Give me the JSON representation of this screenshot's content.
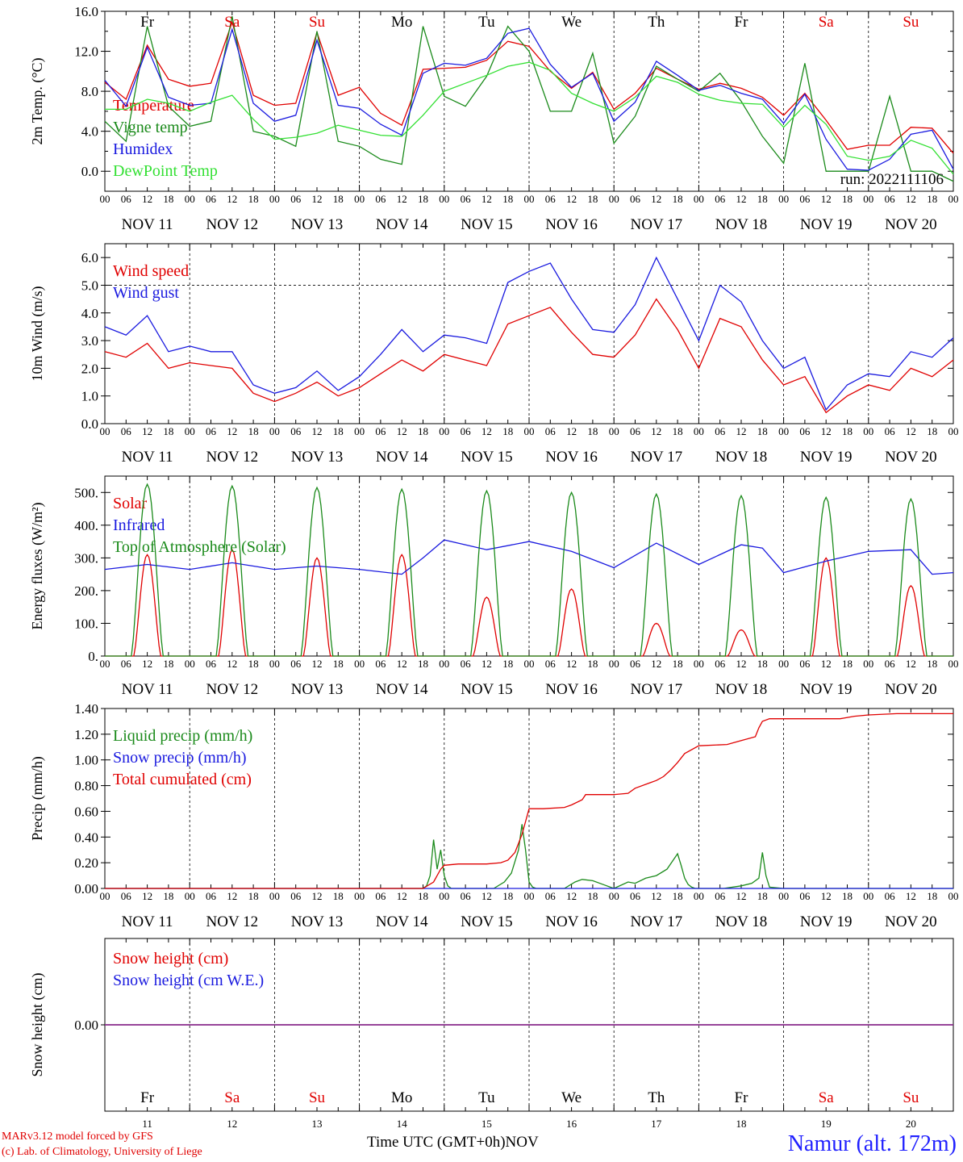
{
  "colors": {
    "red": "#e00000",
    "darkgreen": "#1a8a1a",
    "lightgreen": "#33e033",
    "blue": "#1a1adf",
    "purple": "#8a2a8a",
    "weekend": "#e00000",
    "weekday": "#000000"
  },
  "footer": {
    "model": "MARv3.12 model forced by GFS",
    "credit": "(c) Lab. of Climatology, University of Liege",
    "xlabel": "Time UTC (GMT+0h)",
    "month": "NOV",
    "station": "Namur (alt. 172m)"
  },
  "chart_data": [
    {
      "type": "line",
      "ylabel": "2m Temp. (°C)",
      "ylim": [
        -2,
        16
      ],
      "yticks": [
        0,
        4,
        8,
        12,
        16
      ],
      "ytick_labels": [
        "0.0",
        "4.0",
        "8.0",
        "12.0",
        "16.0"
      ],
      "x_unit": "hours since NOV 11 00 UTC",
      "xlim": [
        0,
        240
      ],
      "run_label": "run: 2022111106",
      "weekdays": [
        {
          "label": "Fr",
          "weekend": false
        },
        {
          "label": "Sa",
          "weekend": true
        },
        {
          "label": "Su",
          "weekend": true
        },
        {
          "label": "Mo",
          "weekend": false
        },
        {
          "label": "Tu",
          "weekend": false
        },
        {
          "label": "We",
          "weekend": false
        },
        {
          "label": "Th",
          "weekend": false
        },
        {
          "label": "Fr",
          "weekend": false
        },
        {
          "label": "Sa",
          "weekend": true
        },
        {
          "label": "Su",
          "weekend": true
        }
      ],
      "series": [
        {
          "name": "Temperature",
          "color": "red",
          "x": [
            0,
            6,
            12,
            18,
            24,
            30,
            36,
            42,
            48,
            54,
            60,
            66,
            72,
            78,
            84,
            90,
            96,
            102,
            108,
            114,
            120,
            126,
            132,
            138,
            144,
            150,
            156,
            162,
            168,
            174,
            180,
            186,
            192,
            198,
            204,
            210,
            216,
            222,
            228,
            234,
            240
          ],
          "y": [
            8.9,
            7.2,
            12.6,
            9.2,
            8.5,
            8.8,
            14.9,
            7.6,
            6.6,
            6.8,
            13.9,
            7.6,
            8.4,
            5.8,
            4.6,
            10.2,
            10.3,
            10.4,
            11.1,
            13.0,
            12.5,
            10.0,
            8.3,
            9.9,
            6.2,
            7.8,
            10.3,
            9.2,
            8.2,
            8.8,
            8.3,
            7.4,
            5.6,
            7.8,
            5.1,
            2.2,
            2.6,
            2.6,
            4.4,
            4.3,
            1.8
          ]
        },
        {
          "name": "Vigne temp",
          "color": "darkgreen",
          "x": [
            0,
            6,
            12,
            18,
            24,
            30,
            36,
            42,
            48,
            54,
            60,
            66,
            72,
            78,
            84,
            90,
            96,
            102,
            108,
            114,
            120,
            126,
            132,
            138,
            144,
            150,
            156,
            162,
            168,
            174,
            180,
            186,
            192,
            198,
            204,
            210,
            216,
            222,
            228,
            234,
            240
          ],
          "y": [
            5.0,
            3.0,
            14.5,
            6.5,
            4.5,
            5.0,
            15.5,
            4.0,
            3.5,
            2.5,
            14.0,
            3.0,
            2.5,
            1.2,
            0.7,
            14.5,
            7.5,
            6.5,
            9.5,
            14.5,
            12.0,
            6.0,
            6.0,
            11.8,
            2.8,
            5.5,
            10.5,
            9.2,
            8.0,
            9.8,
            7.0,
            3.5,
            0.8,
            10.8,
            0.0,
            0.0,
            0.0,
            7.5,
            0.0,
            0.0,
            -1.0
          ]
        },
        {
          "name": "Humidex",
          "color": "blue",
          "x": [
            0,
            6,
            12,
            18,
            24,
            30,
            36,
            42,
            48,
            54,
            60,
            66,
            72,
            78,
            84,
            90,
            96,
            102,
            108,
            114,
            120,
            126,
            132,
            138,
            144,
            150,
            156,
            162,
            168,
            174,
            180,
            186,
            192,
            198,
            204,
            210,
            216,
            222,
            228,
            234,
            240
          ],
          "y": [
            9.1,
            6.5,
            12.4,
            7.4,
            6.6,
            6.8,
            14.2,
            6.8,
            5.0,
            5.6,
            13.1,
            6.6,
            6.3,
            4.7,
            3.6,
            9.8,
            10.8,
            10.6,
            11.3,
            13.8,
            14.3,
            10.7,
            8.4,
            9.8,
            5.0,
            6.9,
            11.0,
            9.6,
            8.1,
            8.6,
            7.8,
            7.2,
            4.8,
            7.7,
            3.2,
            0.2,
            0.1,
            1.2,
            3.7,
            4.1,
            0.2
          ]
        },
        {
          "name": "DewPoint Temp",
          "color": "lightgreen",
          "x": [
            0,
            6,
            12,
            18,
            24,
            30,
            36,
            42,
            48,
            54,
            60,
            66,
            72,
            78,
            84,
            90,
            96,
            102,
            108,
            114,
            120,
            126,
            132,
            138,
            144,
            150,
            156,
            162,
            168,
            174,
            180,
            186,
            192,
            198,
            204,
            210,
            216,
            222,
            228,
            234,
            240
          ],
          "y": [
            6.2,
            6.2,
            7.2,
            6.8,
            6.0,
            6.9,
            7.6,
            5.2,
            3.2,
            3.4,
            3.8,
            4.6,
            4.1,
            3.6,
            3.5,
            5.6,
            8.0,
            8.8,
            9.6,
            10.5,
            10.9,
            10.1,
            7.8,
            6.8,
            6.0,
            7.4,
            9.5,
            8.9,
            7.7,
            7.1,
            6.8,
            6.7,
            4.4,
            6.6,
            4.7,
            1.5,
            1.1,
            1.5,
            3.1,
            2.3,
            -0.3
          ]
        }
      ]
    },
    {
      "type": "line",
      "ylabel": "10m Wind (m/s)",
      "ylim": [
        0,
        6.5
      ],
      "yticks": [
        0,
        1,
        2,
        3,
        4,
        5,
        6
      ],
      "ytick_labels": [
        "0.0",
        "1.0",
        "2.0",
        "3.0",
        "4.0",
        "5.0",
        "6.0"
      ],
      "dashed_level": 5.0,
      "x_unit": "hours since NOV 11 00 UTC",
      "xlim": [
        0,
        240
      ],
      "series": [
        {
          "name": "Wind speed",
          "color": "red",
          "x": [
            0,
            6,
            12,
            18,
            24,
            30,
            36,
            42,
            48,
            54,
            60,
            66,
            72,
            78,
            84,
            90,
            96,
            102,
            108,
            114,
            120,
            126,
            132,
            138,
            144,
            150,
            156,
            162,
            168,
            174,
            180,
            186,
            192,
            198,
            204,
            210,
            216,
            222,
            228,
            234,
            240
          ],
          "y": [
            2.6,
            2.4,
            2.9,
            2.0,
            2.2,
            2.1,
            2.0,
            1.1,
            0.8,
            1.1,
            1.5,
            1.0,
            1.3,
            1.8,
            2.3,
            1.9,
            2.5,
            2.3,
            2.1,
            3.6,
            3.9,
            4.2,
            3.3,
            2.5,
            2.4,
            3.2,
            4.5,
            3.4,
            2.0,
            3.8,
            3.5,
            2.3,
            1.4,
            1.7,
            0.4,
            1.0,
            1.4,
            1.2,
            2.0,
            1.7,
            2.3
          ]
        },
        {
          "name": "Wind gust",
          "color": "blue",
          "x": [
            0,
            6,
            12,
            18,
            24,
            30,
            36,
            42,
            48,
            54,
            60,
            66,
            72,
            78,
            84,
            90,
            96,
            102,
            108,
            114,
            120,
            126,
            132,
            138,
            144,
            150,
            156,
            162,
            168,
            174,
            180,
            186,
            192,
            198,
            204,
            210,
            216,
            222,
            228,
            234,
            240
          ],
          "y": [
            3.5,
            3.2,
            3.9,
            2.6,
            2.8,
            2.6,
            2.6,
            1.4,
            1.1,
            1.3,
            1.9,
            1.2,
            1.7,
            2.5,
            3.4,
            2.6,
            3.2,
            3.1,
            2.9,
            5.1,
            5.5,
            5.8,
            4.5,
            3.4,
            3.3,
            4.3,
            6.0,
            4.5,
            3.0,
            5.0,
            4.4,
            3.0,
            2.0,
            2.4,
            0.5,
            1.4,
            1.8,
            1.7,
            2.6,
            2.4,
            3.1
          ]
        }
      ]
    },
    {
      "type": "line",
      "ylabel": "Energy fluxes (W/m²)",
      "ylim": [
        0,
        550
      ],
      "yticks": [
        0,
        100,
        200,
        300,
        400,
        500
      ],
      "ytick_labels": [
        "0.",
        "100.",
        "200.",
        "300.",
        "400.",
        "500."
      ],
      "x_unit": "hours since NOV 11 00 UTC",
      "xlim": [
        0,
        240
      ],
      "series": [
        {
          "name": "Solar",
          "color": "red",
          "day_peaks": [
            310,
            325,
            300,
            310,
            180,
            205,
            100,
            80,
            300,
            215
          ]
        },
        {
          "name": "Infrared",
          "color": "blue",
          "x": [
            0,
            12,
            24,
            36,
            48,
            60,
            72,
            84,
            90,
            96,
            108,
            120,
            132,
            144,
            156,
            168,
            180,
            186,
            192,
            204,
            216,
            228,
            234,
            240
          ],
          "y": [
            265,
            280,
            265,
            285,
            265,
            275,
            265,
            250,
            300,
            355,
            325,
            350,
            320,
            270,
            345,
            280,
            340,
            330,
            255,
            290,
            320,
            325,
            250,
            255
          ]
        },
        {
          "name": "Top of Atmosphere (Solar)",
          "color": "darkgreen",
          "day_peaks": [
            525,
            520,
            515,
            510,
            505,
            500,
            495,
            490,
            485,
            480
          ]
        }
      ]
    },
    {
      "type": "line",
      "ylabel": "Precip (mm/h)",
      "ylim": [
        0,
        1.4
      ],
      "yticks": [
        0,
        0.2,
        0.4,
        0.6,
        0.8,
        1.0,
        1.2,
        1.4
      ],
      "ytick_labels": [
        "0.00",
        "0.20",
        "0.40",
        "0.60",
        "0.80",
        "1.00",
        "1.20",
        "1.40"
      ],
      "x_unit": "hours since NOV 11 00 UTC",
      "xlim": [
        0,
        240
      ],
      "series": [
        {
          "name": "Liquid precip (mm/h)",
          "color": "darkgreen",
          "x": [
            0,
            90,
            91,
            92,
            93,
            94,
            95,
            96,
            97,
            98,
            110,
            113,
            115,
            117,
            118,
            119,
            120,
            121,
            122,
            130,
            133,
            135,
            138,
            141,
            144,
            148,
            150,
            153,
            156,
            159,
            162,
            163,
            164,
            165,
            166,
            167,
            168,
            175,
            180,
            183,
            185,
            186,
            187,
            188,
            192,
            240
          ],
          "y": [
            0,
            0,
            0.02,
            0.1,
            0.38,
            0.15,
            0.3,
            0.1,
            0.02,
            0,
            0,
            0.05,
            0.12,
            0.3,
            0.5,
            0.3,
            0.05,
            0.01,
            0,
            0,
            0.05,
            0.07,
            0.06,
            0.03,
            0,
            0.05,
            0.04,
            0.08,
            0.1,
            0.15,
            0.27,
            0.18,
            0.08,
            0.03,
            0.01,
            0,
            0,
            0,
            0.02,
            0.04,
            0.08,
            0.28,
            0.1,
            0.01,
            0,
            0
          ]
        },
        {
          "name": "Snow precip (mm/h)",
          "color": "blue",
          "x": [
            0,
            240
          ],
          "y": [
            0,
            0
          ]
        },
        {
          "name": "Total cumulated (cm)",
          "color": "red",
          "x": [
            0,
            90,
            93,
            95,
            96,
            100,
            108,
            112,
            114,
            116,
            118,
            120,
            124,
            130,
            132,
            135,
            136,
            144,
            148,
            150,
            154,
            156,
            158,
            160,
            162,
            164,
            168,
            176,
            180,
            184,
            185,
            186,
            188,
            192,
            208,
            212,
            216,
            224,
            240
          ],
          "y": [
            0,
            0,
            0.05,
            0.15,
            0.18,
            0.19,
            0.19,
            0.2,
            0.22,
            0.28,
            0.42,
            0.62,
            0.62,
            0.63,
            0.65,
            0.69,
            0.73,
            0.73,
            0.74,
            0.78,
            0.82,
            0.84,
            0.87,
            0.92,
            0.98,
            1.05,
            1.11,
            1.12,
            1.15,
            1.18,
            1.25,
            1.3,
            1.32,
            1.32,
            1.32,
            1.34,
            1.35,
            1.36,
            1.36
          ]
        }
      ]
    },
    {
      "type": "line",
      "ylabel": "Snow height (cm)",
      "ylim": [
        -1,
        1
      ],
      "yticks": [
        0
      ],
      "ytick_labels": [
        "0.00"
      ],
      "x_unit": "hours since NOV 11 00 UTC",
      "xlim": [
        0,
        240
      ],
      "series": [
        {
          "name": "Snow height (cm)",
          "color": "red",
          "x": [
            0,
            240
          ],
          "y": [
            0,
            0
          ]
        },
        {
          "name": "Snow height (cm W.E.)",
          "color": "blue",
          "x": [
            0,
            240
          ],
          "y": [
            0,
            0
          ]
        }
      ],
      "date_numbers": [
        "11",
        "12",
        "13",
        "14",
        "15",
        "16",
        "17",
        "18",
        "19",
        "20"
      ]
    }
  ],
  "xaxis": {
    "hour_labels": [
      "00",
      "06",
      "12",
      "18"
    ],
    "end_label": "00",
    "day_labels": [
      "NOV 11",
      "NOV 12",
      "NOV 13",
      "NOV 14",
      "NOV 15",
      "NOV 16",
      "NOV 17",
      "NOV 18",
      "NOV 19",
      "NOV 20"
    ]
  }
}
